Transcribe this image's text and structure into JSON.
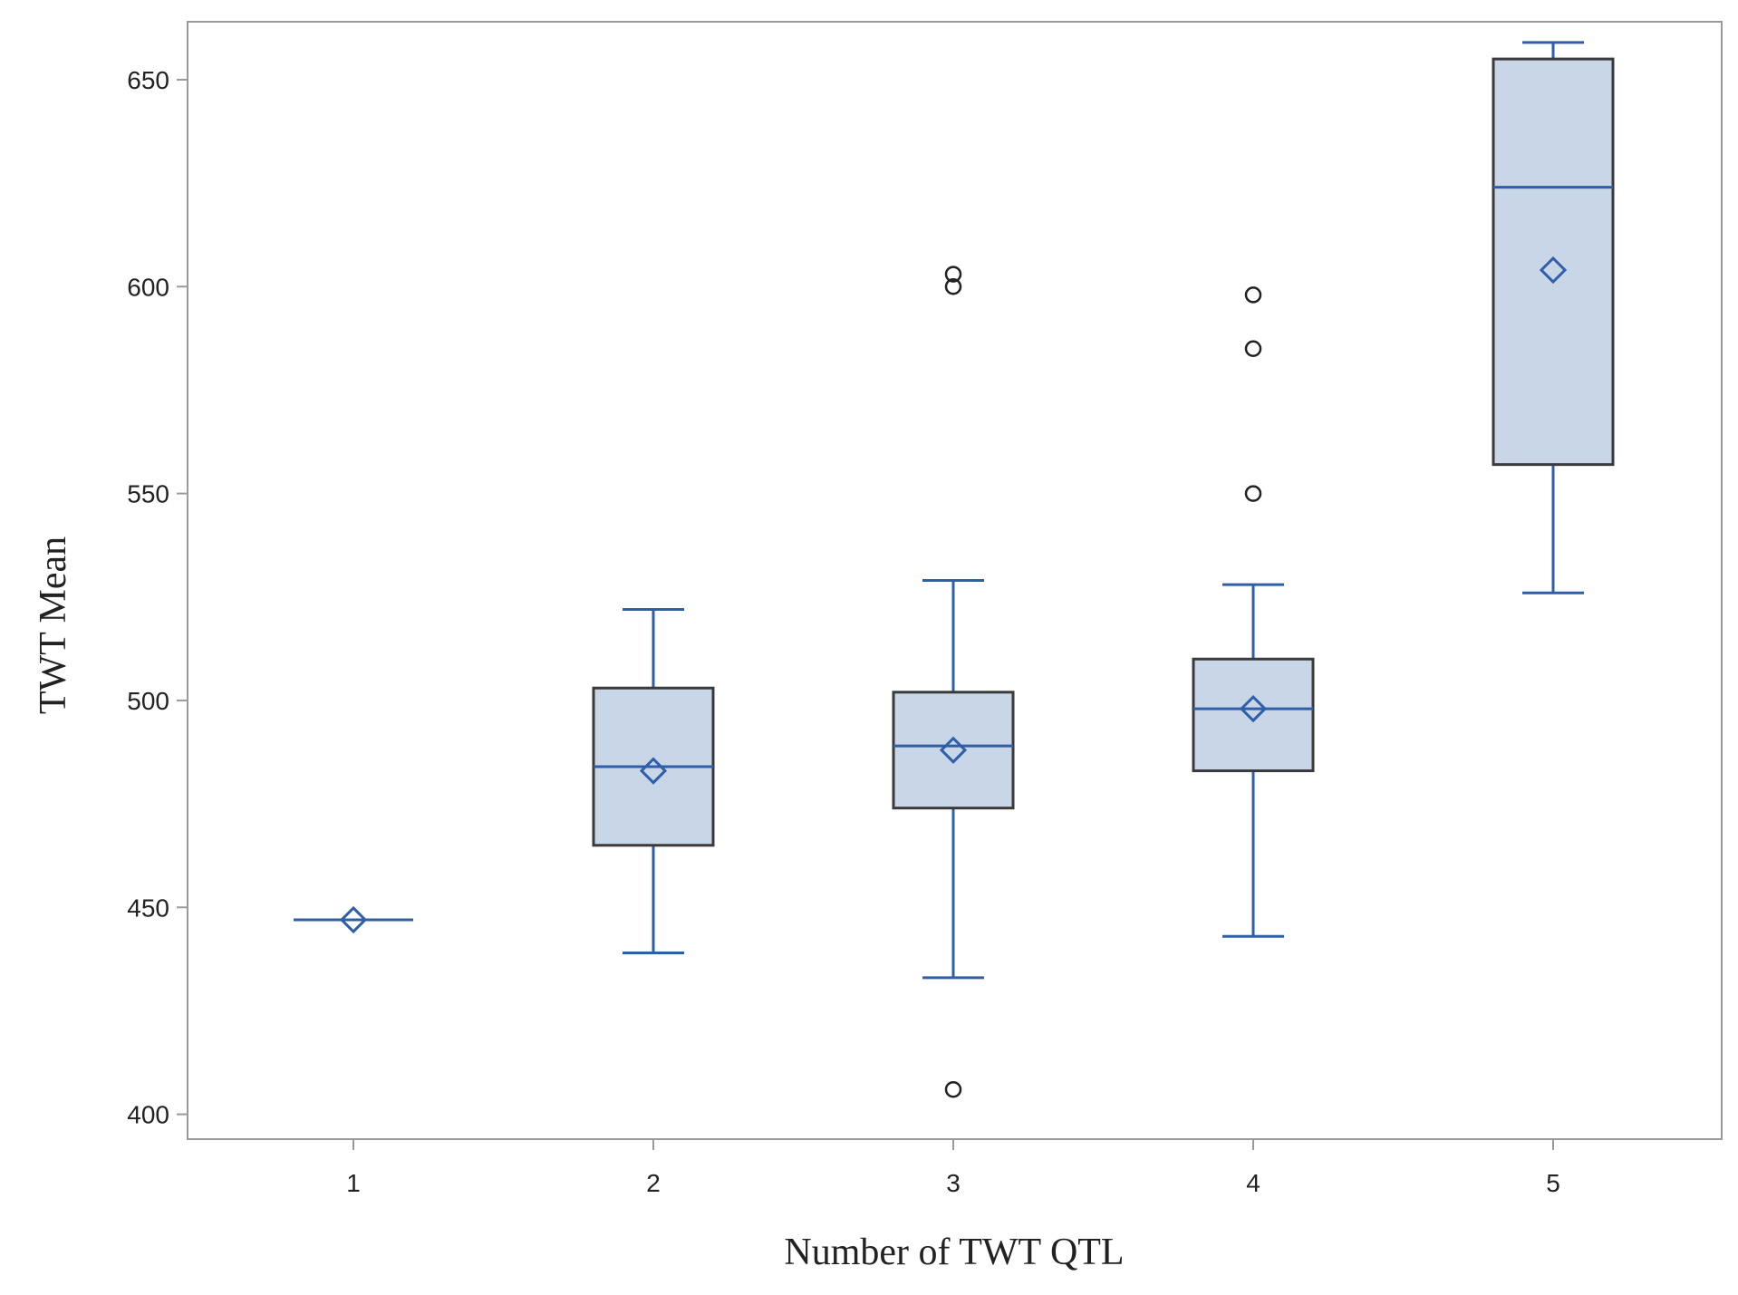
{
  "chart_data": {
    "type": "box",
    "title": "",
    "xlabel": "Number of TWT QTL",
    "ylabel": "TWT Mean",
    "ylim": [
      394,
      664
    ],
    "yticks": [
      400,
      450,
      500,
      550,
      600,
      650
    ],
    "grid": false,
    "categories": [
      "1",
      "2",
      "3",
      "4",
      "5"
    ],
    "boxes": [
      {
        "category": "1",
        "whisker_low": 447,
        "q1": 447,
        "median": 447,
        "q3": 447,
        "whisker_high": 447,
        "mean": 447,
        "outliers": []
      },
      {
        "category": "2",
        "whisker_low": 439,
        "q1": 465,
        "median": 484,
        "q3": 503,
        "whisker_high": 522,
        "mean": 483,
        "outliers": []
      },
      {
        "category": "3",
        "whisker_low": 433,
        "q1": 474,
        "median": 489,
        "q3": 502,
        "whisker_high": 529,
        "mean": 488,
        "outliers": [
          406,
          600,
          603
        ]
      },
      {
        "category": "4",
        "whisker_low": 443,
        "q1": 483,
        "median": 498,
        "q3": 510,
        "whisker_high": 528,
        "mean": 498,
        "outliers": [
          550,
          585,
          598
        ]
      },
      {
        "category": "5",
        "whisker_low": 526,
        "q1": 557,
        "median": 624,
        "q3": 655,
        "whisker_high": 659,
        "mean": 604,
        "outliers": []
      }
    ],
    "colors": {
      "box_fill": "#c8d6e8",
      "box_border": "#3a3a3a",
      "median": "#2f5fa8",
      "whisker": "#2f5fa8",
      "mean_marker": "#2f5fa8",
      "outlier": "#222222",
      "frame": "#9a9a9a"
    }
  }
}
